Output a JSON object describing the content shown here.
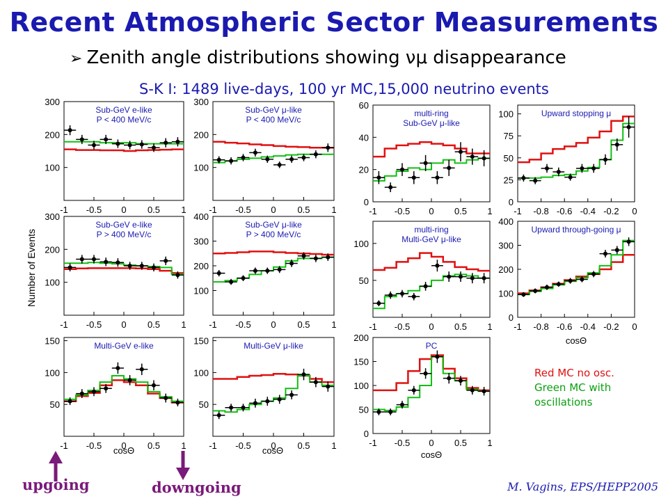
{
  "header": {
    "title": "Recent Atmospheric Sector Measurements",
    "subtitle": "Zenith angle distributions showing νμ disappearance",
    "note": "S-K I: 1489 live-days, 100 yr MC,15,000 neutrino events"
  },
  "legend": {
    "red_text": "Red MC no osc.",
    "green_text_1": "Green MC with",
    "green_text_2": "oscillations"
  },
  "labels": {
    "upgoing": "upgoing",
    "downgoing": "downgoing",
    "credit": "M. Vagins, EPS/HEPP2005",
    "y_axis": "Number of Events",
    "x_axis": "cosΘ"
  },
  "colors": {
    "red": "#e01010",
    "green": "#10c010",
    "data": "#000000",
    "title": "#1a1ab0",
    "arrow": "#7a1a7a"
  },
  "chart_data": [
    {
      "type": "line",
      "title": "Sub-GeV e-like",
      "subtitle": "P < 400 MeV/c",
      "ylim": [
        0,
        300
      ],
      "yticks": [
        100,
        200,
        300
      ],
      "xlim": [
        -1,
        1
      ],
      "xticks": [
        "-1",
        "-0.5",
        "0",
        "0.5",
        "1"
      ],
      "bins": 10,
      "data": [
        213,
        185,
        168,
        185,
        172,
        168,
        170,
        160,
        175,
        178
      ],
      "errors": [
        15,
        14,
        13,
        14,
        13,
        13,
        13,
        13,
        14,
        14
      ],
      "red": [
        155,
        153,
        153,
        152,
        152,
        150,
        152,
        153,
        154,
        155
      ],
      "green": [
        178,
        178,
        178,
        175,
        175,
        175,
        172,
        172,
        172,
        172
      ]
    },
    {
      "type": "line",
      "title": "Sub-GeV μ-like",
      "subtitle": "P < 400 MeV/c",
      "ylim": [
        0,
        300
      ],
      "yticks": [
        100,
        200,
        300
      ],
      "xlim": [
        -1,
        1
      ],
      "xticks": [
        "-1",
        "-0.5",
        "0",
        "0.5",
        "1"
      ],
      "bins": 10,
      "data": [
        123,
        120,
        130,
        145,
        125,
        108,
        125,
        130,
        140,
        160
      ],
      "errors": [
        11,
        11,
        11,
        12,
        11,
        10,
        11,
        11,
        12,
        13
      ],
      "red": [
        178,
        175,
        173,
        170,
        168,
        165,
        163,
        162,
        160,
        160
      ],
      "green": [
        115,
        120,
        125,
        128,
        132,
        135,
        138,
        140,
        140,
        140
      ]
    },
    {
      "type": "line",
      "title": "multi-ring",
      "subtitle": "Sub-GeV μ-like",
      "ylim": [
        0,
        60
      ],
      "yticks": [
        0,
        20,
        40,
        60
      ],
      "xlim": [
        -1,
        1
      ],
      "xticks": [
        "-1",
        "-0.5",
        "0",
        "0.5",
        "1"
      ],
      "bins": 10,
      "data": [
        15,
        9,
        20,
        15,
        24,
        15,
        21,
        31,
        28,
        27
      ],
      "errors": [
        4,
        3,
        4,
        4,
        5,
        4,
        5,
        6,
        5,
        5
      ],
      "red": [
        28,
        33,
        35,
        36,
        37,
        36,
        35,
        33,
        30,
        30
      ],
      "green": [
        13,
        16,
        19,
        21,
        20,
        24,
        26,
        24,
        26,
        27
      ]
    },
    {
      "type": "line",
      "title": "Upward stopping μ",
      "subtitle": "",
      "ylim": [
        0,
        110
      ],
      "yticks": [
        0,
        25,
        50,
        75,
        100
      ],
      "xlim": [
        -1,
        0
      ],
      "xticks": [
        "-1",
        "-0.8",
        "-0.6",
        "-0.4",
        "-0.2",
        "0"
      ],
      "bins": 10,
      "data": [
        27,
        24,
        38,
        34,
        28,
        38,
        38,
        48,
        65,
        85
      ],
      "errors": [
        4,
        4,
        5,
        5,
        4,
        5,
        5,
        6,
        7,
        12
      ],
      "red": [
        45,
        48,
        55,
        60,
        63,
        67,
        73,
        80,
        92,
        97
      ],
      "green": [
        27,
        27,
        28,
        30,
        31,
        35,
        39,
        48,
        70,
        89
      ]
    },
    {
      "type": "line",
      "title": "Sub-GeV e-like",
      "subtitle": "P > 400 MeV/c",
      "ylim": [
        0,
        300
      ],
      "yticks": [
        100,
        200,
        300
      ],
      "xlim": [
        -1,
        1
      ],
      "xticks": [
        "-1",
        "-0.5",
        "0",
        "0.5",
        "1"
      ],
      "bins": 10,
      "data": [
        145,
        170,
        170,
        162,
        160,
        150,
        150,
        145,
        165,
        122
      ],
      "errors": [
        12,
        13,
        13,
        13,
        13,
        12,
        12,
        12,
        13,
        11
      ],
      "red": [
        140,
        142,
        143,
        143,
        143,
        143,
        142,
        140,
        135,
        128
      ],
      "green": [
        158,
        158,
        160,
        158,
        156,
        152,
        150,
        148,
        145,
        125
      ]
    },
    {
      "type": "line",
      "title": "Sub-GeV μ-like",
      "subtitle": "P > 400 MeV/c",
      "ylim": [
        0,
        400
      ],
      "yticks": [
        100,
        200,
        300,
        400
      ],
      "xlim": [
        -1,
        1
      ],
      "xticks": [
        "-1",
        "-0.5",
        "0",
        "0.5",
        "1"
      ],
      "bins": 10,
      "data": [
        170,
        135,
        150,
        180,
        180,
        185,
        210,
        240,
        230,
        235
      ],
      "errors": [
        13,
        12,
        12,
        13,
        13,
        14,
        15,
        15,
        15,
        15
      ],
      "red": [
        250,
        252,
        255,
        258,
        258,
        255,
        252,
        250,
        248,
        245
      ],
      "green": [
        135,
        140,
        150,
        165,
        180,
        195,
        220,
        230,
        230,
        235
      ]
    },
    {
      "type": "line",
      "title": "multi-ring",
      "subtitle": "Multi-GeV μ-like",
      "ylim": [
        0,
        130
      ],
      "yticks": [
        50,
        100
      ],
      "xlim": [
        -1,
        1
      ],
      "xticks": [
        "-1",
        "-0.5",
        "0",
        "0.5",
        "1"
      ],
      "bins": 10,
      "data": [
        19,
        30,
        32,
        28,
        42,
        70,
        55,
        55,
        53,
        53
      ],
      "errors": [
        4,
        5,
        5,
        5,
        6,
        8,
        7,
        7,
        7,
        7
      ],
      "red": [
        64,
        67,
        75,
        80,
        87,
        82,
        75,
        68,
        65,
        63
      ],
      "green": [
        12,
        28,
        32,
        36,
        42,
        50,
        56,
        58,
        56,
        53
      ]
    },
    {
      "type": "line",
      "title": "Upward through-going μ",
      "subtitle": "",
      "ylim": [
        0,
        400
      ],
      "yticks": [
        0,
        100,
        200,
        300,
        400
      ],
      "xlim": [
        -1,
        0
      ],
      "xticks": [
        "-1",
        "-0.8",
        "-0.6",
        "-0.4",
        "-0.2",
        "0"
      ],
      "bins": 10,
      "data": [
        95,
        110,
        125,
        138,
        152,
        158,
        180,
        265,
        280,
        315
      ],
      "errors": [
        10,
        10,
        11,
        11,
        12,
        12,
        13,
        16,
        17,
        18
      ],
      "red": [
        100,
        112,
        125,
        140,
        155,
        170,
        180,
        200,
        230,
        260
      ],
      "green": [
        95,
        108,
        120,
        135,
        150,
        165,
        185,
        215,
        260,
        320
      ]
    },
    {
      "type": "line",
      "title": "Multi-GeV e-like",
      "subtitle": "",
      "ylim": [
        0,
        155
      ],
      "yticks": [
        50,
        100,
        150
      ],
      "xlim": [
        -1,
        1
      ],
      "xticks": [
        "-1",
        "-0.5",
        "0",
        "0.5",
        "1"
      ],
      "bins": 10,
      "data": [
        55,
        67,
        70,
        75,
        107,
        88,
        105,
        80,
        60,
        53
      ],
      "errors": [
        6,
        7,
        7,
        7,
        9,
        8,
        9,
        8,
        7,
        6
      ],
      "red": [
        55,
        63,
        68,
        80,
        88,
        85,
        80,
        67,
        60,
        53
      ],
      "green": [
        58,
        65,
        72,
        85,
        95,
        90,
        85,
        70,
        62,
        55
      ]
    },
    {
      "type": "line",
      "title": "Multi-GeV μ-like",
      "subtitle": "",
      "ylim": [
        0,
        155
      ],
      "yticks": [
        50,
        100,
        150
      ],
      "xlim": [
        -1,
        1
      ],
      "xticks": [
        "-1",
        "-0.5",
        "0",
        "0.5",
        "1"
      ],
      "bins": 10,
      "data": [
        33,
        45,
        45,
        52,
        55,
        58,
        65,
        97,
        85,
        78
      ],
      "errors": [
        6,
        6,
        6,
        7,
        7,
        7,
        7,
        9,
        8,
        8
      ],
      "red": [
        90,
        90,
        93,
        95,
        96,
        98,
        97,
        95,
        90,
        85
      ],
      "green": [
        40,
        38,
        42,
        50,
        55,
        60,
        75,
        95,
        85,
        80
      ]
    },
    {
      "type": "line",
      "title": "PC",
      "subtitle": "",
      "ylim": [
        0,
        200
      ],
      "yticks": [
        0,
        50,
        100,
        150,
        200
      ],
      "xlim": [
        -1,
        1
      ],
      "xticks": [
        "-1",
        "-0.5",
        "0",
        "0.5",
        "1"
      ],
      "bins": 10,
      "data": [
        45,
        45,
        60,
        90,
        125,
        160,
        115,
        110,
        90,
        88
      ],
      "errors": [
        7,
        7,
        8,
        9,
        11,
        13,
        11,
        10,
        9,
        9
      ],
      "red": [
        90,
        90,
        105,
        130,
        155,
        163,
        135,
        115,
        95,
        90
      ],
      "green": [
        50,
        48,
        55,
        75,
        100,
        160,
        125,
        110,
        92,
        88
      ]
    }
  ]
}
